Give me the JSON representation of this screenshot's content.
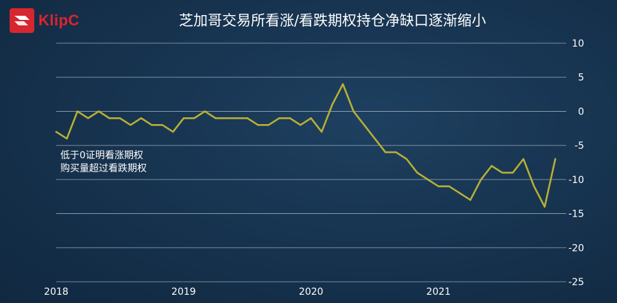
{
  "brand": {
    "name": "KlipC",
    "accent": "#d7262f"
  },
  "chart_data": {
    "type": "line",
    "title": "芝加哥交易所看涨/看跌期权持仓净缺口逐渐缩小",
    "xlabel": "",
    "ylabel": "",
    "x_ticks": [
      "2018",
      "2019",
      "2020",
      "2021"
    ],
    "y_ticks": [
      10,
      5,
      0,
      -5,
      -10,
      -15,
      -20,
      -25
    ],
    "ylim": [
      -25,
      10
    ],
    "xlim": [
      "2018-01",
      "2021-12"
    ],
    "grid": "horizontal",
    "line_color": "#b8b034",
    "annotation": [
      "低于0证明看涨期权",
      "购买量超过看跌期权"
    ],
    "series": [
      {
        "x": [
          "2018-01",
          "2018-02",
          "2018-03",
          "2018-04",
          "2018-05",
          "2018-06",
          "2018-07",
          "2018-08",
          "2018-09",
          "2018-10",
          "2018-11",
          "2018-12",
          "2019-01",
          "2019-02",
          "2019-03",
          "2019-04",
          "2019-05",
          "2019-06",
          "2019-07",
          "2019-08",
          "2019-09",
          "2019-10",
          "2019-11",
          "2019-12",
          "2020-01",
          "2020-02",
          "2020-03",
          "2020-04",
          "2020-05",
          "2020-06",
          "2020-07",
          "2020-08",
          "2020-09",
          "2020-10",
          "2020-11",
          "2020-12",
          "2021-01",
          "2021-02",
          "2021-03",
          "2021-04",
          "2021-05",
          "2021-06",
          "2021-07",
          "2021-08",
          "2021-09",
          "2021-10",
          "2021-11",
          "2021-12"
        ],
        "values": [
          -3,
          -4,
          0,
          -1,
          0,
          -1,
          -1,
          -2,
          -1,
          -2,
          -2,
          -3,
          -1,
          -1,
          0,
          -1,
          -1,
          -1,
          -1,
          -2,
          -2,
          -1,
          -1,
          -2,
          -1,
          -3,
          1,
          4,
          0,
          -2,
          -4,
          -6,
          -6,
          -7,
          -9,
          -10,
          -11,
          -11,
          -12,
          -13,
          -10,
          -8,
          -9,
          -9,
          -7,
          -11,
          -14,
          -7
        ]
      }
    ]
  }
}
